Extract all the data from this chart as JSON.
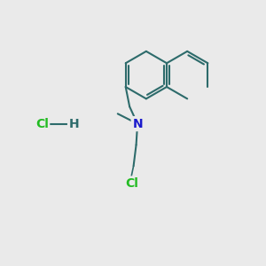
{
  "background_color": "#eaeaea",
  "bond_color": "#2d6b6b",
  "nitrogen_color": "#1a1acc",
  "chlorine_color": "#22bb22",
  "bond_width": 1.5,
  "figsize": [
    3.0,
    3.0
  ],
  "dpi": 100,
  "xlim": [
    0,
    10
  ],
  "ylim": [
    0,
    10
  ]
}
